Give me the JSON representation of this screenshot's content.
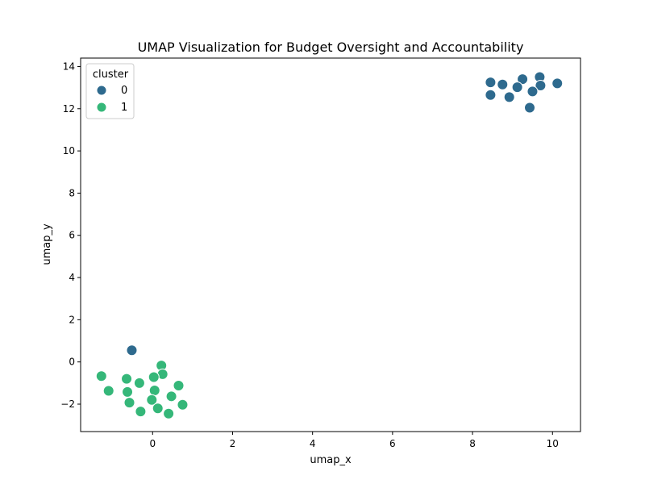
{
  "chart_data": {
    "type": "scatter",
    "title": "UMAP Visualization for Budget Oversight and Accountability",
    "xlabel": "umap_x",
    "ylabel": "umap_y",
    "xlim": [
      -1.8,
      10.7
    ],
    "ylim": [
      -3.3,
      14.4
    ],
    "xticks": [
      0,
      2,
      4,
      6,
      8,
      10
    ],
    "yticks": [
      -2,
      0,
      2,
      4,
      6,
      8,
      10,
      12,
      14
    ],
    "grid": false,
    "legend": {
      "title": "cluster",
      "placement": "top-left",
      "entries": [
        "0",
        "1"
      ]
    },
    "series": [
      {
        "name": "0",
        "color": "#2e6a8e",
        "points": [
          {
            "x": 8.45,
            "y": 13.25
          },
          {
            "x": 8.75,
            "y": 13.15
          },
          {
            "x": 9.25,
            "y": 13.4
          },
          {
            "x": 9.68,
            "y": 13.5
          },
          {
            "x": 10.12,
            "y": 13.2
          },
          {
            "x": 9.12,
            "y": 13.02
          },
          {
            "x": 9.7,
            "y": 13.1
          },
          {
            "x": 9.5,
            "y": 12.82
          },
          {
            "x": 8.45,
            "y": 12.65
          },
          {
            "x": 8.92,
            "y": 12.55
          },
          {
            "x": 9.43,
            "y": 12.05
          },
          {
            "x": -0.52,
            "y": 0.55
          }
        ]
      },
      {
        "name": "1",
        "color": "#35b779",
        "points": [
          {
            "x": -1.28,
            "y": -0.67
          },
          {
            "x": 0.22,
            "y": -0.17
          },
          {
            "x": 0.25,
            "y": -0.58
          },
          {
            "x": 0.03,
            "y": -0.72
          },
          {
            "x": -0.65,
            "y": -0.8
          },
          {
            "x": -0.33,
            "y": -1.0
          },
          {
            "x": 0.65,
            "y": -1.12
          },
          {
            "x": -1.1,
            "y": -1.37
          },
          {
            "x": -0.63,
            "y": -1.42
          },
          {
            "x": 0.05,
            "y": -1.35
          },
          {
            "x": 0.47,
            "y": -1.63
          },
          {
            "x": -0.02,
            "y": -1.8
          },
          {
            "x": -0.58,
            "y": -1.93
          },
          {
            "x": 0.75,
            "y": -2.03
          },
          {
            "x": 0.13,
            "y": -2.2
          },
          {
            "x": -0.3,
            "y": -2.35
          },
          {
            "x": 0.4,
            "y": -2.45
          }
        ]
      }
    ]
  }
}
